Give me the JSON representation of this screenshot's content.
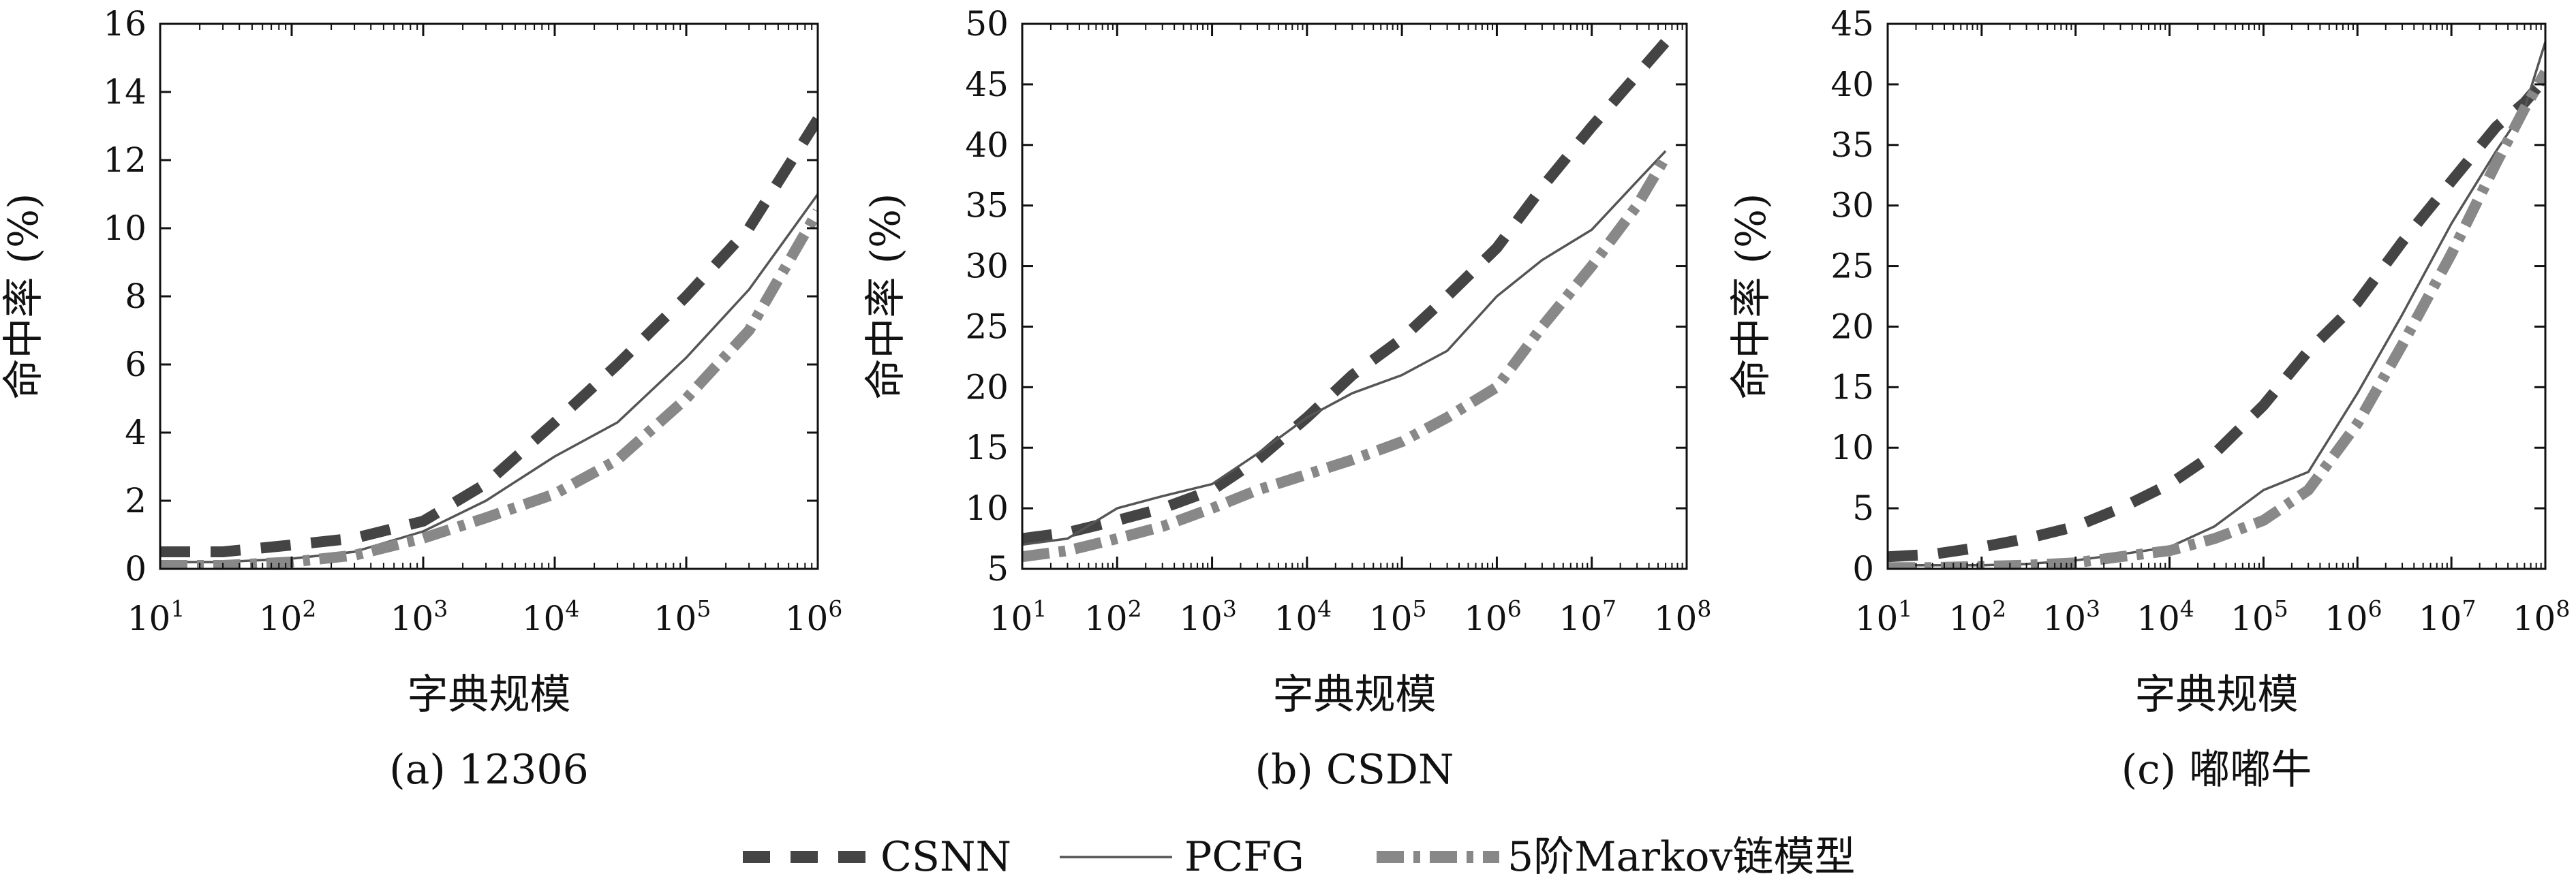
{
  "legend": {
    "items": [
      {
        "key": "CSNN",
        "label": "CSNN",
        "color": "#444444",
        "style": "dashed"
      },
      {
        "key": "PCFG",
        "label": "PCFG",
        "color": "#555555",
        "style": "solid"
      },
      {
        "key": "markov",
        "label": "5阶Markov链模型",
        "color": "#888888",
        "style": "dashdot"
      }
    ]
  },
  "chart_data": [
    {
      "type": "line",
      "caption": "(a) 12306",
      "xlabel": "字典规模",
      "ylabel": "命中率 (%)",
      "x_scale": "log10",
      "xlim": [
        10,
        1000000
      ],
      "x_ticks": [
        "10^1",
        "10^2",
        "10^3",
        "10^4",
        "10^5",
        "10^6"
      ],
      "ylim": [
        0,
        16
      ],
      "y_ticks": [
        0,
        2,
        4,
        6,
        8,
        10,
        12,
        14,
        16
      ],
      "grid": false,
      "series": [
        {
          "name": "CSNN",
          "x": [
            10,
            30,
            100,
            300,
            1000,
            3000,
            10000,
            30000,
            100000,
            300000,
            1000000
          ],
          "y": [
            0.5,
            0.5,
            0.7,
            0.9,
            1.4,
            2.5,
            4.3,
            6.0,
            8.0,
            10.0,
            13.2
          ]
        },
        {
          "name": "PCFG",
          "x": [
            10,
            30,
            100,
            300,
            1000,
            3000,
            10000,
            30000,
            100000,
            300000,
            1000000
          ],
          "y": [
            0.2,
            0.2,
            0.3,
            0.5,
            1.1,
            2.0,
            3.3,
            4.3,
            6.2,
            8.2,
            11.0
          ]
        },
        {
          "name": "5阶Markov链模型",
          "x": [
            10,
            30,
            100,
            300,
            1000,
            3000,
            10000,
            30000,
            100000,
            300000,
            1000000
          ],
          "y": [
            0.1,
            0.1,
            0.2,
            0.4,
            0.9,
            1.5,
            2.2,
            3.2,
            5.0,
            7.0,
            10.5
          ]
        }
      ]
    },
    {
      "type": "line",
      "caption": "(b) CSDN",
      "xlabel": "字典规模",
      "ylabel": "命中率 (%)",
      "x_scale": "log10",
      "xlim": [
        10,
        100000000
      ],
      "x_ticks": [
        "10^1",
        "10^2",
        "10^3",
        "10^4",
        "10^5",
        "10^6",
        "10^7",
        "10^8"
      ],
      "ylim": [
        5,
        50
      ],
      "y_ticks": [
        5,
        10,
        15,
        20,
        25,
        30,
        35,
        40,
        45,
        50
      ],
      "grid": false,
      "series": [
        {
          "name": "CSNN",
          "x": [
            10,
            30,
            100,
            300,
            1000,
            3000,
            10000,
            30000,
            100000,
            300000,
            1000000,
            3000000,
            10000000,
            60000000
          ],
          "y": [
            7.5,
            8.0,
            9.0,
            10.0,
            11.5,
            14.0,
            17.5,
            21.0,
            24.0,
            27.5,
            31.5,
            36.5,
            41.5,
            48.5
          ]
        },
        {
          "name": "PCFG",
          "x": [
            10,
            30,
            100,
            300,
            1000,
            3000,
            10000,
            30000,
            100000,
            300000,
            1000000,
            3000000,
            10000000,
            30000000,
            60000000
          ],
          "y": [
            7.0,
            7.5,
            10.0,
            11.0,
            12.0,
            14.5,
            17.5,
            19.5,
            21.0,
            23.0,
            27.5,
            30.5,
            33.0,
            37.0,
            39.5
          ]
        },
        {
          "name": "5阶Markov链模型",
          "x": [
            10,
            30,
            100,
            300,
            1000,
            3000,
            10000,
            30000,
            100000,
            300000,
            1000000,
            3000000,
            10000000,
            30000000,
            60000000
          ],
          "y": [
            6.0,
            6.5,
            7.5,
            8.5,
            10.0,
            11.5,
            12.8,
            14.0,
            15.5,
            17.5,
            20.0,
            25.0,
            30.0,
            35.0,
            39.0
          ]
        }
      ]
    },
    {
      "type": "line",
      "caption": "(c) 嘟嘟牛",
      "xlabel": "字典规模",
      "ylabel": "命中率 (%)",
      "x_scale": "log10",
      "xlim": [
        10,
        100000000
      ],
      "x_ticks": [
        "10^1",
        "10^2",
        "10^3",
        "10^4",
        "10^5",
        "10^6",
        "10^7",
        "10^8"
      ],
      "ylim": [
        0,
        45
      ],
      "y_ticks": [
        0,
        5,
        10,
        15,
        20,
        25,
        30,
        35,
        40,
        45
      ],
      "grid": false,
      "series": [
        {
          "name": "CSNN",
          "x": [
            10,
            30,
            100,
            300,
            1000,
            3000,
            10000,
            30000,
            100000,
            300000,
            1000000,
            3000000,
            10000000,
            30000000,
            60000000,
            100000000
          ],
          "y": [
            1.0,
            1.2,
            1.8,
            2.5,
            3.5,
            5.0,
            7.0,
            9.5,
            13.5,
            18.0,
            22.0,
            27.0,
            32.0,
            36.5,
            38.5,
            40.5
          ]
        },
        {
          "name": "PCFG",
          "x": [
            10,
            30,
            100,
            300,
            1000,
            3000,
            10000,
            30000,
            100000,
            300000,
            1000000,
            3000000,
            10000000,
            30000000,
            60000000,
            100000000
          ],
          "y": [
            0.3,
            0.3,
            0.3,
            0.4,
            0.7,
            1.2,
            1.8,
            3.5,
            6.5,
            8.0,
            14.5,
            21.0,
            28.5,
            34.5,
            38.0,
            43.5
          ]
        },
        {
          "name": "5阶Markov链模型",
          "x": [
            10,
            30,
            100,
            300,
            1000,
            3000,
            10000,
            30000,
            100000,
            300000,
            1000000,
            3000000,
            10000000,
            30000000,
            60000000,
            100000000
          ],
          "y": [
            0.1,
            0.1,
            0.2,
            0.3,
            0.5,
            1.0,
            1.5,
            2.5,
            4.0,
            6.5,
            12.0,
            18.5,
            26.0,
            33.5,
            38.0,
            41.0
          ]
        }
      ]
    }
  ]
}
